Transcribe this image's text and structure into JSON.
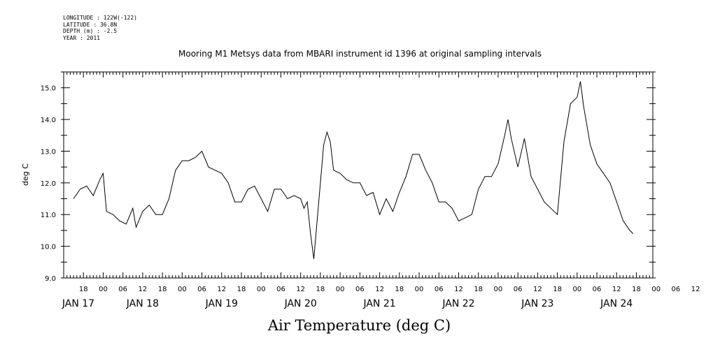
{
  "meta": {
    "longitude": "LONGITUDE : 122W(-122)",
    "latitude": "LATITUDE : 36.8N",
    "depth": "DEPTH (m) : -2.5",
    "year": "YEAR : 2011"
  },
  "chart_data": {
    "type": "line",
    "title": "Mooring M1 Metsys data from MBARI instrument id 1396 at original sampling intervals",
    "xlabel": "Air Temperature (deg C)",
    "ylabel": "deg C",
    "ylim": [
      9.0,
      15.5
    ],
    "yticks": [
      "9.0",
      "10.0",
      "11.0",
      "12.0",
      "13.0",
      "14.0",
      "15.0"
    ],
    "xlim": [
      "2011-01-17T12:00",
      "2011-01-24T23:00"
    ],
    "hour_ticks": [
      "18",
      "00",
      "06",
      "12",
      "18",
      "00",
      "06",
      "12",
      "18",
      "00",
      "06",
      "12",
      "18",
      "00",
      "06",
      "12",
      "18",
      "00",
      "06",
      "12",
      "18",
      "00",
      "06",
      "12",
      "18",
      "00",
      "06",
      "12",
      "18",
      "00",
      "06",
      "12"
    ],
    "day_labels": [
      "JAN 17",
      "JAN 18",
      "JAN 19",
      "JAN 20",
      "JAN 21",
      "JAN 22",
      "JAN 23",
      "JAN 24"
    ],
    "grid": false,
    "series": [
      {
        "x": [
          "2011-01-17T15:00",
          "2011-01-17T17:00",
          "2011-01-17T19:00",
          "2011-01-17T21:00",
          "2011-01-17T23:00",
          "2011-01-18T00:00",
          "2011-01-18T01:00",
          "2011-01-18T03:00",
          "2011-01-18T05:00",
          "2011-01-18T07:00",
          "2011-01-18T09:00",
          "2011-01-18T10:00",
          "2011-01-18T12:00",
          "2011-01-18T14:00",
          "2011-01-18T16:00",
          "2011-01-18T18:00",
          "2011-01-18T20:00",
          "2011-01-18T22:00",
          "2011-01-19T00:00",
          "2011-01-19T02:00",
          "2011-01-19T04:00",
          "2011-01-19T06:00",
          "2011-01-19T08:00",
          "2011-01-19T10:00",
          "2011-01-19T12:00",
          "2011-01-19T14:00",
          "2011-01-19T16:00",
          "2011-01-19T18:00",
          "2011-01-19T20:00",
          "2011-01-19T22:00",
          "2011-01-20T00:00",
          "2011-01-20T02:00",
          "2011-01-20T04:00",
          "2011-01-20T06:00",
          "2011-01-20T08:00",
          "2011-01-20T10:00",
          "2011-01-20T12:00",
          "2011-01-20T13:00",
          "2011-01-20T14:00",
          "2011-01-20T15:00",
          "2011-01-20T16:00",
          "2011-01-20T17:00",
          "2011-01-20T18:00",
          "2011-01-20T19:00",
          "2011-01-20T20:00",
          "2011-01-20T21:00",
          "2011-01-20T22:00",
          "2011-01-21T00:00",
          "2011-01-21T02:00",
          "2011-01-21T04:00",
          "2011-01-21T06:00",
          "2011-01-21T08:00",
          "2011-01-21T10:00",
          "2011-01-21T12:00",
          "2011-01-21T14:00",
          "2011-01-21T16:00",
          "2011-01-21T18:00",
          "2011-01-21T20:00",
          "2011-01-21T22:00",
          "2011-01-22T00:00",
          "2011-01-22T02:00",
          "2011-01-22T04:00",
          "2011-01-22T06:00",
          "2011-01-22T08:00",
          "2011-01-22T10:00",
          "2011-01-22T12:00",
          "2011-01-22T14:00",
          "2011-01-22T16:00",
          "2011-01-22T18:00",
          "2011-01-22T20:00",
          "2011-01-22T22:00",
          "2011-01-23T00:00",
          "2011-01-23T02:00",
          "2011-01-23T03:00",
          "2011-01-23T04:00",
          "2011-01-23T06:00",
          "2011-01-23T08:00",
          "2011-01-23T10:00",
          "2011-01-23T12:00",
          "2011-01-23T14:00",
          "2011-01-23T16:00",
          "2011-01-23T18:00",
          "2011-01-23T20:00",
          "2011-01-23T22:00",
          "2011-01-24T00:00",
          "2011-01-24T01:00",
          "2011-01-24T02:00",
          "2011-01-24T04:00",
          "2011-01-24T06:00",
          "2011-01-24T08:00",
          "2011-01-24T10:00",
          "2011-01-24T12:00",
          "2011-01-24T14:00",
          "2011-01-24T16:00",
          "2011-01-24T17:00"
        ],
        "values": [
          11.5,
          11.8,
          11.9,
          11.6,
          12.1,
          12.3,
          11.1,
          11.0,
          10.8,
          10.7,
          11.2,
          10.6,
          11.1,
          11.3,
          11.0,
          11.0,
          11.5,
          12.4,
          12.7,
          12.7,
          12.8,
          13.0,
          12.5,
          12.4,
          12.3,
          12.0,
          11.4,
          11.4,
          11.8,
          11.9,
          11.5,
          11.1,
          11.8,
          11.8,
          11.5,
          11.6,
          11.5,
          11.2,
          11.4,
          10.4,
          9.6,
          10.8,
          12.0,
          13.2,
          13.6,
          13.3,
          12.4,
          12.3,
          12.1,
          12.0,
          12.0,
          11.6,
          11.7,
          11.0,
          11.5,
          11.1,
          11.7,
          12.2,
          12.9,
          12.9,
          12.4,
          12.0,
          11.4,
          11.4,
          11.2,
          10.8,
          10.9,
          11.0,
          11.8,
          12.2,
          12.2,
          12.6,
          13.5,
          14.0,
          13.4,
          12.5,
          13.4,
          12.2,
          11.8,
          11.4,
          11.2,
          11.0,
          13.3,
          14.5,
          14.7,
          15.2,
          14.4,
          13.2,
          12.6,
          12.3,
          12.0,
          11.4,
          10.8,
          10.5,
          10.4
        ]
      }
    ]
  }
}
